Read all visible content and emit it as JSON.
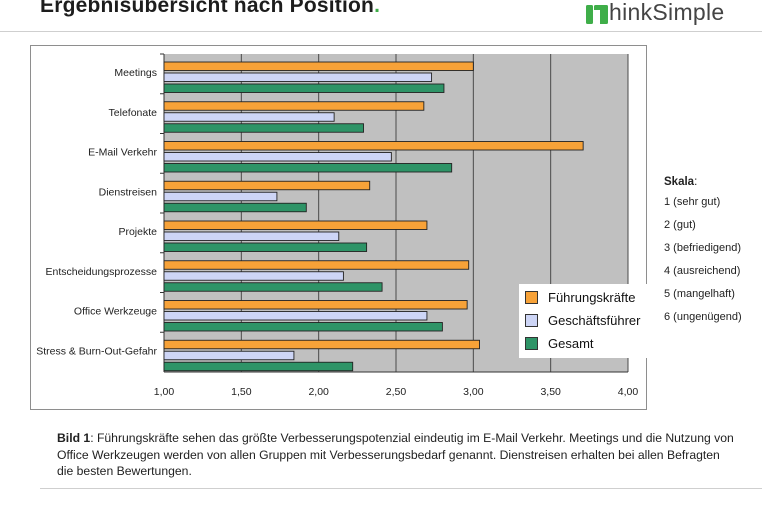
{
  "header": {
    "title": "Ergebnisübersicht nach Position",
    "title_dot": ".",
    "logo_text": "hinkSimple",
    "logo_icon": "thinksimple-logo-icon",
    "brand_color": "#3fae49"
  },
  "chart_data": {
    "type": "bar",
    "orientation": "horizontal",
    "categories": [
      "Meetings",
      "Telefonate",
      "E-Mail Verkehr",
      "Dienstreisen",
      "Projekte",
      "Entscheidungsprozesse",
      "Office Werkzeuge",
      "Stress & Burn-Out-Gefahr"
    ],
    "series": [
      {
        "name": "Führungskräfte",
        "color": "#f7a238",
        "values": [
          3.0,
          2.68,
          3.71,
          2.33,
          2.7,
          2.97,
          2.96,
          3.04
        ]
      },
      {
        "name": "Geschäftsführer",
        "color": "#cdd5f6",
        "values": [
          2.73,
          2.1,
          2.47,
          1.73,
          2.13,
          2.16,
          2.7,
          1.84
        ]
      },
      {
        "name": "Gesamt",
        "color": "#2e9467",
        "values": [
          2.81,
          2.29,
          2.86,
          1.92,
          2.31,
          2.41,
          2.8,
          2.22
        ]
      }
    ],
    "xlim": [
      1.0,
      4.0
    ],
    "xticks": [
      "1,00",
      "1,50",
      "2,00",
      "2,50",
      "3,00",
      "3,50",
      "4,00"
    ],
    "title": "",
    "xlabel": "",
    "ylabel": "",
    "grid": "vertical",
    "legend_position": "right",
    "plot_background": "#c0c0c0"
  },
  "scale": {
    "title": "Skala",
    "colon": ":",
    "items": [
      "1 (sehr gut)",
      "2 (gut)",
      "3 (befriedigend)",
      "4 (ausreichend)",
      "5 (mangelhaft)",
      "6 (ungenügend)"
    ]
  },
  "caption": {
    "label": "Bild 1",
    "text": ": Führungskräfte sehen das größte Verbesserungspotenzial eindeutig im E-Mail Verkehr. Meetings und die Nutzung von Office Werkzeugen werden von allen Gruppen mit Verbesserungsbedarf genannt. Dienstreisen erhalten bei allen Befragten die besten Bewertungen."
  }
}
